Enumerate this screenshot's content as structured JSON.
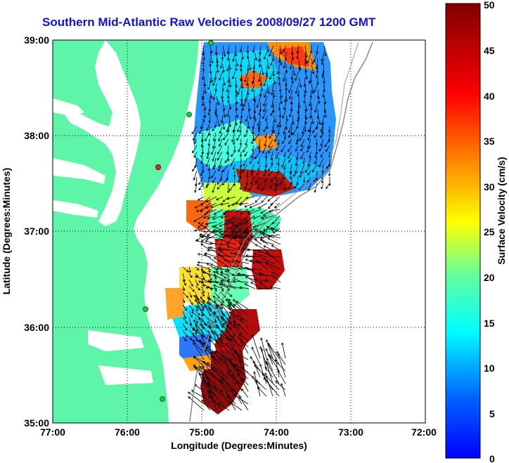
{
  "title": "Southern Mid-Atlantic Raw Velocities 2008/09/27 1200 GMT",
  "map": {
    "xlabel": "Longitude (Degrees:Minutes)",
    "ylabel": "Latitude (Degrees:Minutes)",
    "lon_ticks": [
      "77:00",
      "76:00",
      "75:00",
      "74:00",
      "73:00",
      "72:00"
    ],
    "lat_ticks": [
      "39:00",
      "38:00",
      "37:00",
      "36:00",
      "35:00"
    ],
    "lon_range": [
      -77,
      -72
    ],
    "lat_range": [
      35,
      39
    ],
    "grid": true
  },
  "colorbar": {
    "label": "Surface Velocity (cm/s)",
    "ticks": [
      "50",
      "45",
      "40",
      "35",
      "30",
      "25",
      "20",
      "15",
      "10",
      "5",
      "0"
    ],
    "range": [
      0,
      50
    ],
    "colormap": "jet"
  },
  "colors": {
    "land": "#5ef5a8",
    "title": "#1010e0",
    "station": "#22cc22",
    "station_alert": "#e03020"
  }
}
